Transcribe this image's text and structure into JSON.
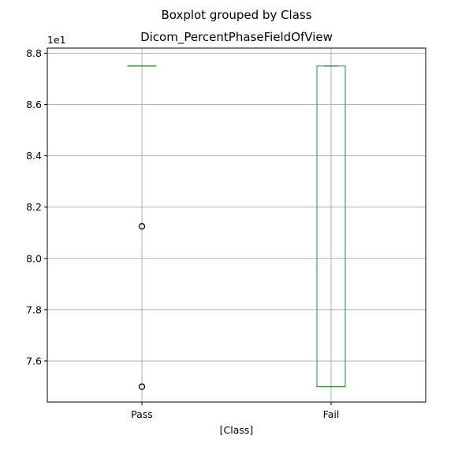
{
  "chart_data": {
    "type": "boxplot",
    "suptitle": "Boxplot grouped by Class",
    "title": "Dicom_PercentPhaseFieldOfView",
    "xlabel": "[Class]",
    "ylabel": "",
    "y_offset_label": "1e1",
    "categories": [
      "Pass",
      "Fail"
    ],
    "yticks": [
      7.6,
      7.8,
      8.0,
      8.2,
      8.4,
      8.6,
      8.8
    ],
    "ytick_labels": [
      "7.6",
      "7.8",
      "8.0",
      "8.2",
      "8.4",
      "8.6",
      "8.8"
    ],
    "ylim": [
      7.44,
      8.82
    ],
    "grid": true,
    "boxes": [
      {
        "category": "Pass",
        "whisker_low": 8.75,
        "q1": 8.75,
        "median": 8.75,
        "q3": 8.75,
        "whisker_high": 8.75,
        "outliers": [
          8.125,
          7.5
        ]
      },
      {
        "category": "Fail",
        "whisker_low": 7.5,
        "q1": 7.5,
        "median": 7.5,
        "q3": 8.75,
        "whisker_high": 8.75,
        "outliers": []
      }
    ],
    "colors": {
      "box": "#1f77b4",
      "median": "#2ca02c",
      "whisker": "#000000",
      "grid": "#b0b0b0",
      "outlier": "#000000"
    }
  }
}
